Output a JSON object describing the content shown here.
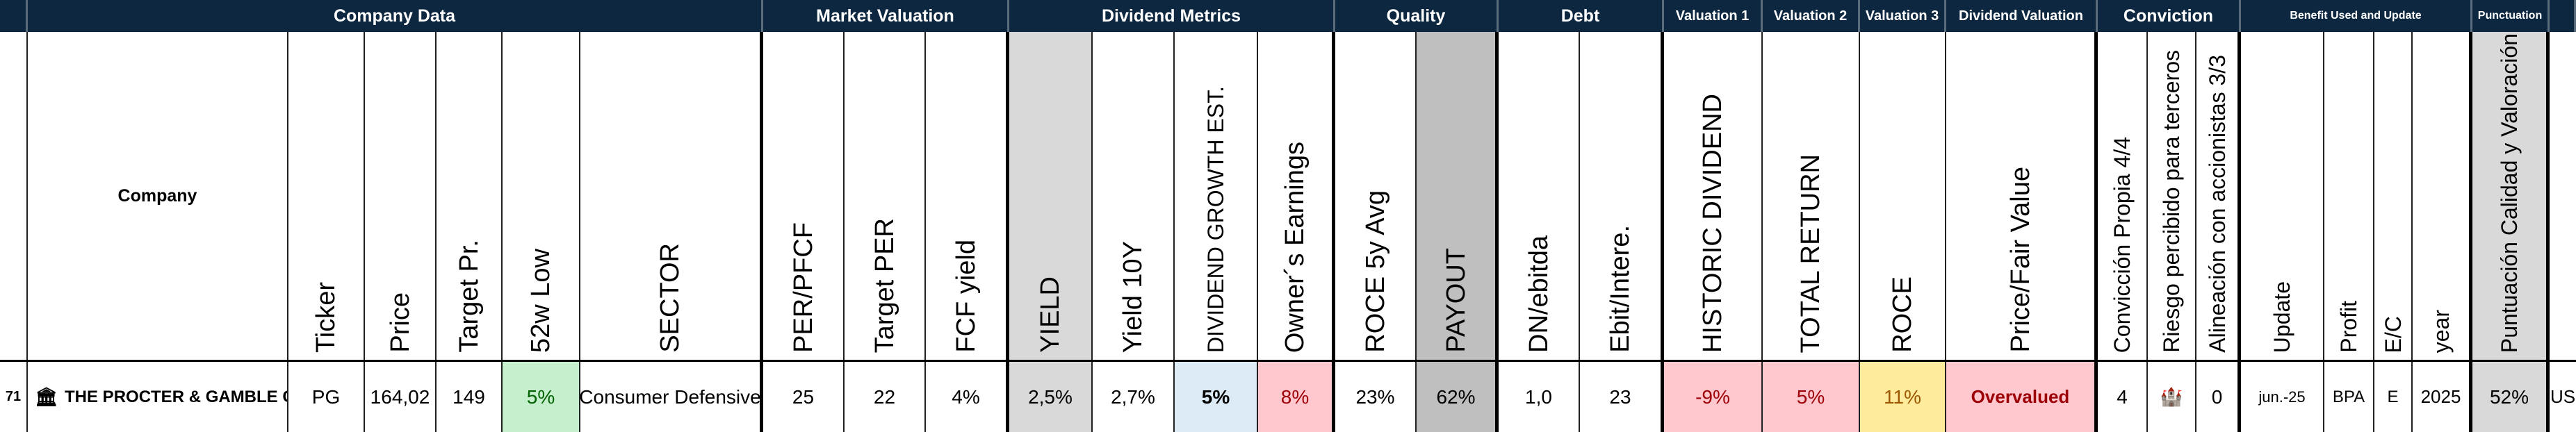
{
  "groups": {
    "company_data": "Company Data",
    "market_valuation": "Market Valuation",
    "dividend_metrics": "Dividend Metrics",
    "quality": "Quality",
    "debt": "Debt",
    "valuation1": "Valuation 1",
    "valuation2": "Valuation 2",
    "valuation3": "Valuation 3",
    "dividend_valuation": "Dividend Valuation",
    "conviction": "Conviction",
    "benefit": "Benefit Used and Update",
    "punctuation": "Punctuation"
  },
  "headers": {
    "company": "Company",
    "ticker": "Ticker",
    "price": "Price",
    "target_pr": "Target Pr.",
    "low52w": "52w Low",
    "sector": "SECTOR",
    "per_pfcf": "PER/PFCF",
    "target_per": "Target PER",
    "fcf_yield": "FCF yield",
    "yield": "YIELD",
    "yield10y": "Yield 10Y",
    "div_growth": "DIVIDEND GROWTH EST.",
    "owners_earnings": "Owner´s Earnings",
    "roce5y": "ROCE 5y Avg",
    "payout": "PAYOUT",
    "dn_ebitda": "DN/ebitda",
    "ebit_inter": "Ebit/Intere.",
    "historic_dividend": "HISTORIC DIVIDEND",
    "total_return": "TOTAL RETURN",
    "roce": "ROCE",
    "price_fair": "Price/Fair Value",
    "conviccion": "Convicción Propia 4/4",
    "riesgo": "Riesgo percibido para terceros",
    "alineacion": "Alineación con accionistas 3/3",
    "update": "Update",
    "profit": "Profit",
    "ec": "E/C",
    "year": "year",
    "puntuacion": "Puntuación Calidad y Valoración"
  },
  "row": {
    "index": "71",
    "icon": "bank-icon",
    "company": "THE PROCTER & GAMBLE COMPANY",
    "ticker": "PG",
    "price": "164,02",
    "target_pr": "149",
    "low52w": "5%",
    "sector": "Consumer Defensive",
    "per_pfcf": "25",
    "target_per": "22",
    "fcf_yield": "4%",
    "yield": "2,5%",
    "yield10y": "2,7%",
    "div_growth": "5%",
    "owners_earnings": "8%",
    "roce5y": "23%",
    "payout": "62%",
    "dn_ebitda": "1,0",
    "ebit_inter": "23",
    "historic_dividend": "-9%",
    "total_return": "5%",
    "roce": "11%",
    "price_fair": "Overvalued",
    "conviccion": "4",
    "riesgo_icon": "castle-icon",
    "alineacion": "0",
    "update": "jun.-25",
    "profit": "BPA",
    "ec": "E",
    "year": "2025",
    "puntuacion": "52%",
    "country": "US"
  },
  "colors": {
    "header_bg": "#0d2740",
    "green": "#c6efce",
    "blue": "#ddebf7",
    "pink": "#ffc7ce",
    "yellow": "#ffeb9c",
    "gray": "#d9d9d9"
  }
}
